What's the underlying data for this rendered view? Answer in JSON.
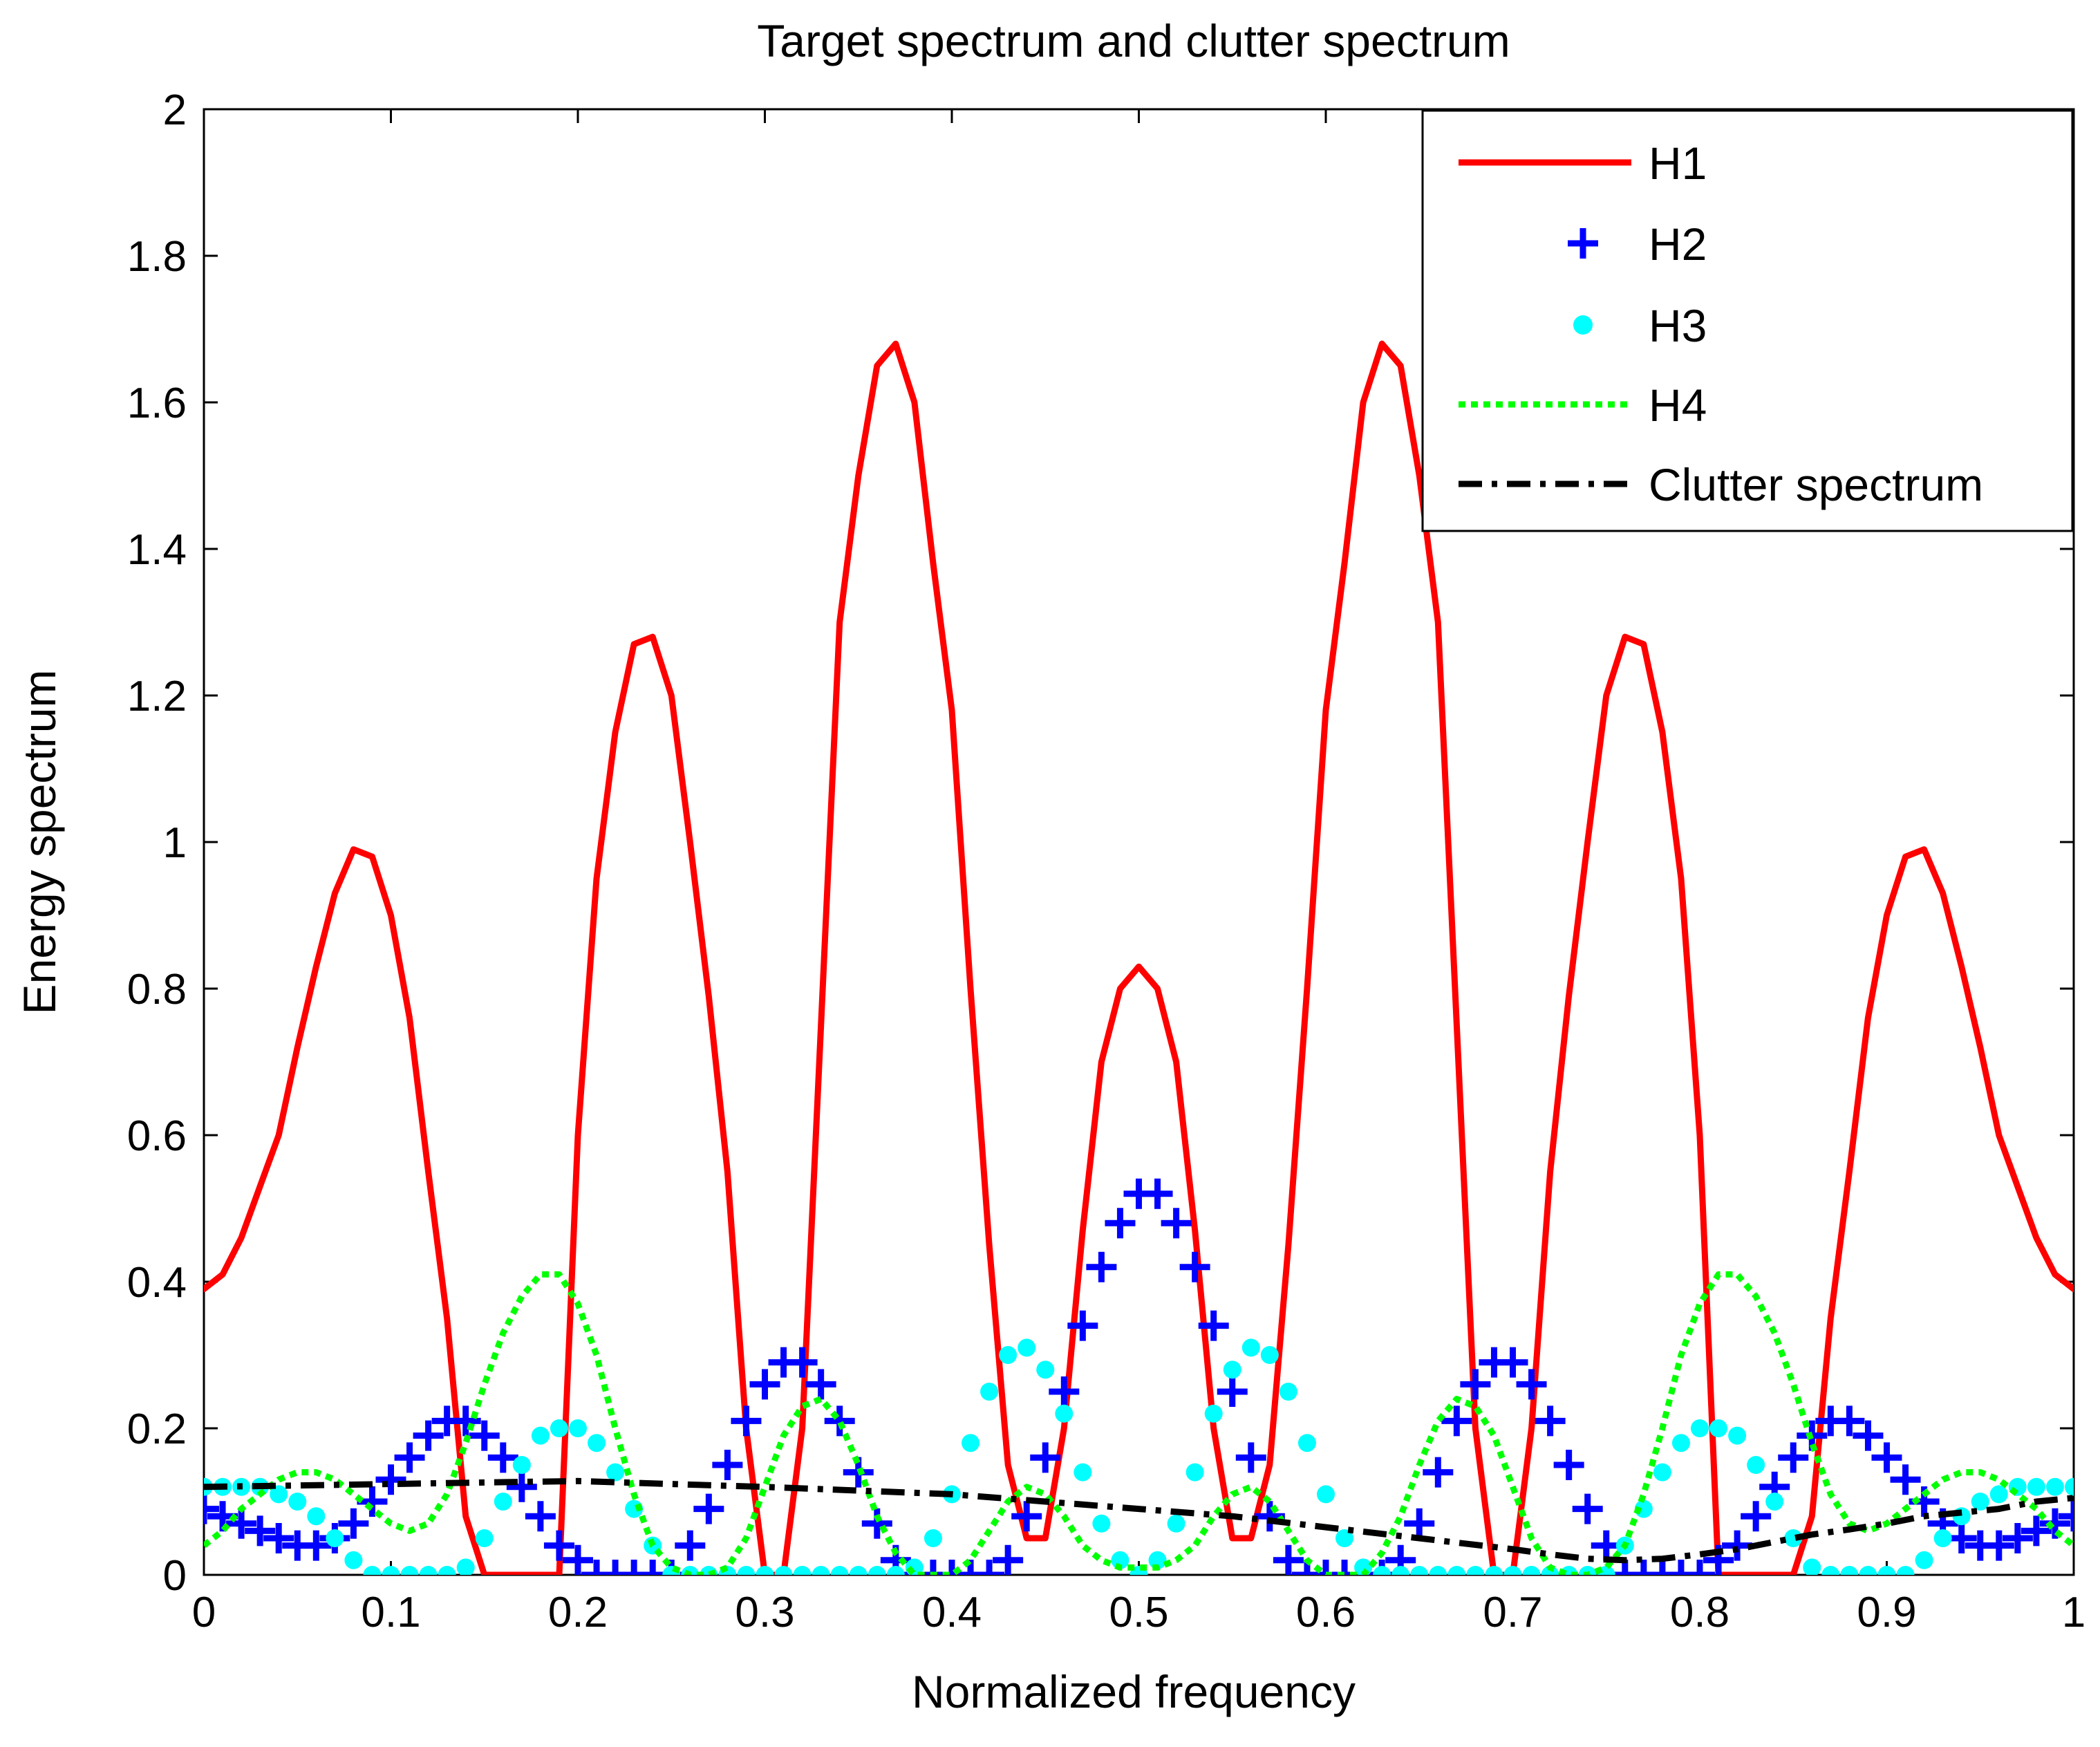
{
  "chart_data": {
    "type": "line",
    "title": "Target spectrum and clutter spectrum",
    "xlabel": "Normalized frequency",
    "ylabel": "Energy spectrum",
    "xlim": [
      0,
      1
    ],
    "ylim": [
      0,
      2
    ],
    "x_ticks": [
      0,
      0.1,
      0.2,
      0.3,
      0.4,
      0.5,
      0.6,
      0.7,
      0.8,
      0.9,
      1
    ],
    "x_tick_labels": [
      "0",
      "0.1",
      "0.2",
      "0.3",
      "0.4",
      "0.5",
      "0.6",
      "0.7",
      "0.8",
      "0.9",
      "1"
    ],
    "y_ticks": [
      0,
      0.2,
      0.4,
      0.6,
      0.8,
      1,
      1.2,
      1.4,
      1.6,
      1.8,
      2
    ],
    "y_tick_labels": [
      "0",
      "0.2",
      "0.4",
      "0.6",
      "0.8",
      "1",
      "1.2",
      "1.4",
      "1.6",
      "1.8",
      "2"
    ],
    "legend_position": "top-right",
    "series": [
      {
        "name": "H1",
        "style": "solid-line",
        "color": "#ff0000",
        "x": [
          0.0,
          0.01,
          0.02,
          0.03,
          0.04,
          0.05,
          0.06,
          0.07,
          0.08,
          0.09,
          0.1,
          0.11,
          0.12,
          0.13,
          0.14,
          0.15,
          0.16,
          0.17,
          0.18,
          0.19,
          0.2,
          0.21,
          0.22,
          0.23,
          0.24,
          0.25,
          0.26,
          0.27,
          0.28,
          0.29,
          0.3,
          0.31,
          0.32,
          0.33,
          0.34,
          0.35,
          0.36,
          0.37,
          0.38,
          0.39,
          0.4,
          0.41,
          0.42,
          0.43,
          0.44,
          0.45,
          0.46,
          0.47,
          0.48,
          0.49,
          0.5,
          0.51,
          0.52,
          0.53,
          0.54,
          0.55,
          0.56,
          0.57,
          0.58,
          0.59,
          0.6,
          0.61,
          0.62,
          0.63,
          0.64,
          0.65,
          0.66,
          0.67,
          0.68,
          0.69,
          0.7,
          0.71,
          0.72,
          0.73,
          0.74,
          0.75,
          0.76,
          0.77,
          0.78,
          0.79,
          0.8,
          0.81,
          0.82,
          0.83,
          0.84,
          0.85,
          0.86,
          0.87,
          0.88,
          0.89,
          0.9,
          0.91,
          0.92,
          0.93,
          0.94,
          0.95,
          0.96,
          0.97,
          0.98,
          0.99,
          1.0
        ],
        "y": [
          0.39,
          0.41,
          0.46,
          0.53,
          0.6,
          0.72,
          0.83,
          0.93,
          0.99,
          0.98,
          0.9,
          0.76,
          0.55,
          0.35,
          0.08,
          0.0,
          0.0,
          0.0,
          0.0,
          0.0,
          0.6,
          0.95,
          1.15,
          1.27,
          1.28,
          1.2,
          1.0,
          0.79,
          0.55,
          0.2,
          0.0,
          0.0,
          0.2,
          0.75,
          1.3,
          1.5,
          1.65,
          1.68,
          1.6,
          1.38,
          1.18,
          0.8,
          0.45,
          0.15,
          0.05,
          0.05,
          0.2,
          0.47,
          0.7,
          0.8,
          0.83,
          0.8,
          0.7,
          0.47,
          0.2,
          0.05,
          0.05,
          0.15,
          0.45,
          0.8,
          1.18,
          1.38,
          1.6,
          1.68,
          1.65,
          1.5,
          1.3,
          0.75,
          0.2,
          0.0,
          0.0,
          0.2,
          0.55,
          0.79,
          1.0,
          1.2,
          1.28,
          1.27,
          1.15,
          0.95,
          0.6,
          0.0,
          0.0,
          0.0,
          0.0,
          0.0,
          0.08,
          0.35,
          0.55,
          0.76,
          0.9,
          0.98,
          0.99,
          0.93,
          0.83,
          0.72,
          0.6,
          0.53,
          0.46,
          0.41,
          0.39
        ]
      },
      {
        "name": "H2",
        "style": "plus-markers",
        "color": "#0000ff",
        "x": [
          0.0,
          0.01,
          0.02,
          0.03,
          0.04,
          0.05,
          0.06,
          0.07,
          0.08,
          0.09,
          0.1,
          0.11,
          0.12,
          0.13,
          0.14,
          0.15,
          0.16,
          0.17,
          0.18,
          0.19,
          0.2,
          0.21,
          0.22,
          0.23,
          0.24,
          0.25,
          0.26,
          0.27,
          0.28,
          0.29,
          0.3,
          0.31,
          0.32,
          0.33,
          0.34,
          0.35,
          0.36,
          0.37,
          0.38,
          0.39,
          0.4,
          0.41,
          0.42,
          0.43,
          0.44,
          0.45,
          0.46,
          0.47,
          0.48,
          0.49,
          0.5,
          0.51,
          0.52,
          0.53,
          0.54,
          0.55,
          0.56,
          0.57,
          0.58,
          0.59,
          0.6,
          0.61,
          0.62,
          0.63,
          0.64,
          0.65,
          0.66,
          0.67,
          0.68,
          0.69,
          0.7,
          0.71,
          0.72,
          0.73,
          0.74,
          0.75,
          0.76,
          0.77,
          0.78,
          0.79,
          0.8,
          0.81,
          0.82,
          0.83,
          0.84,
          0.85,
          0.86,
          0.87,
          0.88,
          0.89,
          0.9,
          0.91,
          0.92,
          0.93,
          0.94,
          0.95,
          0.96,
          0.97,
          0.98,
          0.99,
          1.0
        ],
        "y": [
          0.09,
          0.08,
          0.07,
          0.06,
          0.05,
          0.04,
          0.04,
          0.05,
          0.07,
          0.1,
          0.13,
          0.16,
          0.19,
          0.21,
          0.21,
          0.19,
          0.16,
          0.12,
          0.08,
          0.04,
          0.02,
          0.0,
          0.0,
          0.0,
          0.0,
          0.0,
          0.04,
          0.09,
          0.15,
          0.21,
          0.26,
          0.29,
          0.29,
          0.26,
          0.21,
          0.14,
          0.07,
          0.02,
          0.0,
          0.0,
          0.0,
          0.0,
          0.0,
          0.02,
          0.08,
          0.16,
          0.25,
          0.34,
          0.42,
          0.48,
          0.52,
          0.52,
          0.48,
          0.42,
          0.34,
          0.25,
          0.16,
          0.08,
          0.02,
          0.0,
          0.0,
          0.0,
          0.0,
          0.0,
          0.02,
          0.07,
          0.14,
          0.21,
          0.26,
          0.29,
          0.29,
          0.26,
          0.21,
          0.15,
          0.09,
          0.04,
          0.0,
          0.0,
          0.0,
          0.0,
          0.0,
          0.02,
          0.04,
          0.08,
          0.12,
          0.16,
          0.19,
          0.21,
          0.21,
          0.19,
          0.16,
          0.13,
          0.1,
          0.07,
          0.05,
          0.04,
          0.04,
          0.05,
          0.06,
          0.07,
          0.08
        ]
      },
      {
        "name": "H3",
        "style": "dot-markers",
        "color": "#00ffff",
        "x": [
          0.0,
          0.01,
          0.02,
          0.03,
          0.04,
          0.05,
          0.06,
          0.07,
          0.08,
          0.09,
          0.1,
          0.11,
          0.12,
          0.13,
          0.14,
          0.15,
          0.16,
          0.17,
          0.18,
          0.19,
          0.2,
          0.21,
          0.22,
          0.23,
          0.24,
          0.25,
          0.26,
          0.27,
          0.28,
          0.29,
          0.3,
          0.31,
          0.32,
          0.33,
          0.34,
          0.35,
          0.36,
          0.37,
          0.38,
          0.39,
          0.4,
          0.41,
          0.42,
          0.43,
          0.44,
          0.45,
          0.46,
          0.47,
          0.48,
          0.49,
          0.5,
          0.51,
          0.52,
          0.53,
          0.54,
          0.55,
          0.56,
          0.57,
          0.58,
          0.59,
          0.6,
          0.61,
          0.62,
          0.63,
          0.64,
          0.65,
          0.66,
          0.67,
          0.68,
          0.69,
          0.7,
          0.71,
          0.72,
          0.73,
          0.74,
          0.75,
          0.76,
          0.77,
          0.78,
          0.79,
          0.8,
          0.81,
          0.82,
          0.83,
          0.84,
          0.85,
          0.86,
          0.87,
          0.88,
          0.89,
          0.9,
          0.91,
          0.92,
          0.93,
          0.94,
          0.95,
          0.96,
          0.97,
          0.98,
          0.99,
          1.0
        ],
        "y": [
          0.12,
          0.12,
          0.12,
          0.12,
          0.11,
          0.1,
          0.08,
          0.05,
          0.02,
          0.0,
          0.0,
          0.0,
          0.0,
          0.0,
          0.01,
          0.05,
          0.1,
          0.15,
          0.19,
          0.2,
          0.2,
          0.18,
          0.14,
          0.09,
          0.04,
          0.0,
          0.0,
          0.0,
          0.0,
          0.0,
          0.0,
          0.0,
          0.0,
          0.0,
          0.0,
          0.0,
          0.0,
          0.0,
          0.01,
          0.05,
          0.11,
          0.18,
          0.25,
          0.3,
          0.31,
          0.28,
          0.22,
          0.14,
          0.07,
          0.02,
          0.0,
          0.02,
          0.07,
          0.14,
          0.22,
          0.28,
          0.31,
          0.3,
          0.25,
          0.18,
          0.11,
          0.05,
          0.01,
          0.0,
          0.0,
          0.0,
          0.0,
          0.0,
          0.0,
          0.0,
          0.0,
          0.0,
          0.0,
          0.0,
          0.0,
          0.0,
          0.04,
          0.09,
          0.14,
          0.18,
          0.2,
          0.2,
          0.19,
          0.15,
          0.1,
          0.05,
          0.01,
          0.0,
          0.0,
          0.0,
          0.0,
          0.0,
          0.02,
          0.05,
          0.08,
          0.1,
          0.11,
          0.12,
          0.12,
          0.12,
          0.12
        ]
      },
      {
        "name": "H4",
        "style": "dotted-line",
        "color": "#00ff00",
        "x": [
          0.0,
          0.01,
          0.02,
          0.03,
          0.04,
          0.05,
          0.06,
          0.07,
          0.08,
          0.09,
          0.1,
          0.11,
          0.12,
          0.13,
          0.14,
          0.15,
          0.16,
          0.17,
          0.18,
          0.19,
          0.2,
          0.21,
          0.22,
          0.23,
          0.24,
          0.25,
          0.26,
          0.27,
          0.28,
          0.29,
          0.3,
          0.31,
          0.32,
          0.33,
          0.34,
          0.35,
          0.36,
          0.37,
          0.38,
          0.39,
          0.4,
          0.41,
          0.42,
          0.43,
          0.44,
          0.45,
          0.46,
          0.47,
          0.48,
          0.49,
          0.5,
          0.51,
          0.52,
          0.53,
          0.54,
          0.55,
          0.56,
          0.57,
          0.58,
          0.59,
          0.6,
          0.61,
          0.62,
          0.63,
          0.64,
          0.65,
          0.66,
          0.67,
          0.68,
          0.69,
          0.7,
          0.71,
          0.72,
          0.73,
          0.74,
          0.75,
          0.76,
          0.77,
          0.78,
          0.79,
          0.8,
          0.81,
          0.82,
          0.83,
          0.84,
          0.85,
          0.86,
          0.87,
          0.88,
          0.89,
          0.9,
          0.91,
          0.92,
          0.93,
          0.94,
          0.95,
          0.96,
          0.97,
          0.98,
          0.99,
          1.0
        ],
        "y": [
          0.04,
          0.06,
          0.09,
          0.11,
          0.13,
          0.14,
          0.14,
          0.13,
          0.11,
          0.09,
          0.07,
          0.06,
          0.07,
          0.11,
          0.18,
          0.26,
          0.33,
          0.38,
          0.41,
          0.41,
          0.37,
          0.3,
          0.2,
          0.11,
          0.04,
          0.01,
          0.0,
          0.0,
          0.01,
          0.05,
          0.12,
          0.19,
          0.23,
          0.24,
          0.21,
          0.15,
          0.08,
          0.03,
          0.0,
          0.0,
          0.0,
          0.02,
          0.06,
          0.1,
          0.12,
          0.11,
          0.08,
          0.04,
          0.02,
          0.01,
          0.01,
          0.01,
          0.02,
          0.04,
          0.08,
          0.11,
          0.12,
          0.1,
          0.06,
          0.02,
          0.0,
          0.0,
          0.0,
          0.03,
          0.08,
          0.15,
          0.21,
          0.24,
          0.23,
          0.19,
          0.12,
          0.05,
          0.01,
          0.0,
          0.0,
          0.01,
          0.04,
          0.11,
          0.2,
          0.3,
          0.37,
          0.41,
          0.41,
          0.38,
          0.33,
          0.26,
          0.18,
          0.11,
          0.07,
          0.06,
          0.07,
          0.09,
          0.11,
          0.13,
          0.14,
          0.14,
          0.13,
          0.11,
          0.09,
          0.06,
          0.04
        ]
      },
      {
        "name": "Clutter spectrum",
        "style": "dash-dot-line",
        "color": "#000000",
        "x": [
          0.0,
          0.05,
          0.1,
          0.15,
          0.2,
          0.25,
          0.3,
          0.35,
          0.4,
          0.45,
          0.5,
          0.55,
          0.6,
          0.65,
          0.7,
          0.72,
          0.74,
          0.76,
          0.78,
          0.8,
          0.82,
          0.84,
          0.86,
          0.88,
          0.9,
          0.92,
          0.94,
          0.96,
          0.98,
          1.0
        ],
        "y": [
          0.12,
          0.122,
          0.124,
          0.126,
          0.128,
          0.124,
          0.12,
          0.115,
          0.11,
          0.1,
          0.09,
          0.08,
          0.065,
          0.05,
          0.035,
          0.028,
          0.022,
          0.02,
          0.022,
          0.028,
          0.035,
          0.045,
          0.055,
          0.062,
          0.07,
          0.08,
          0.085,
          0.09,
          0.1,
          0.105
        ]
      }
    ]
  }
}
